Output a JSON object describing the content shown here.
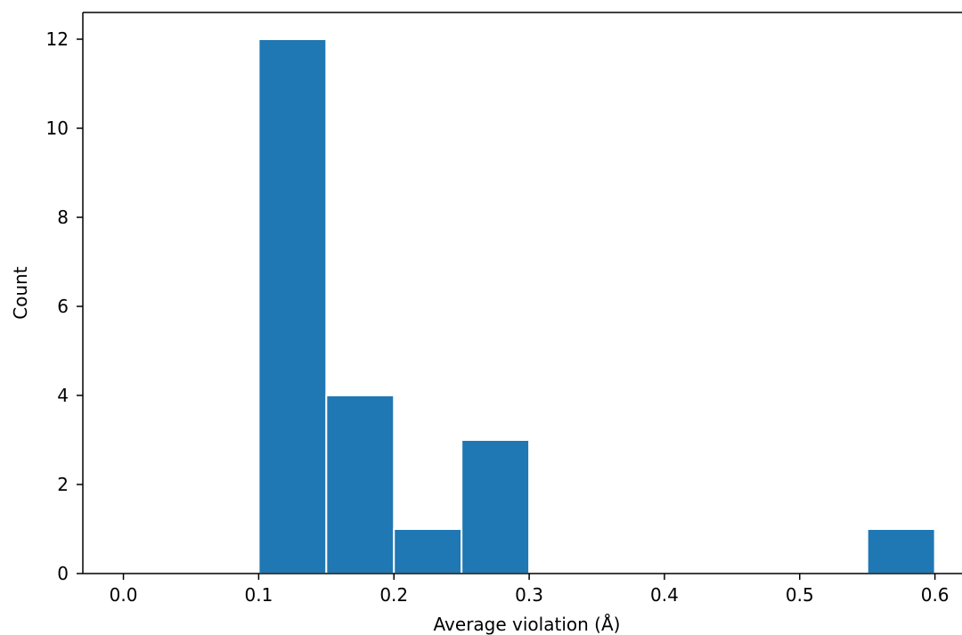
{
  "chart_data": {
    "type": "bar",
    "title": "",
    "xlabel": "Average violation (Å)",
    "ylabel": "Count",
    "xlim": [
      -0.03,
      0.62
    ],
    "ylim": [
      0,
      12.6
    ],
    "xticks": [
      0.0,
      0.1,
      0.2,
      0.3,
      0.4,
      0.5,
      0.6
    ],
    "xtick_labels": [
      "0.0",
      "0.1",
      "0.2",
      "0.3",
      "0.4",
      "0.5",
      "0.6"
    ],
    "yticks": [
      0,
      2,
      4,
      6,
      8,
      10,
      12
    ],
    "ytick_labels": [
      "0",
      "2",
      "4",
      "6",
      "8",
      "10",
      "12"
    ],
    "grid": false,
    "bar_color": "#1f77b4",
    "bins": [
      {
        "x0": 0.1,
        "x1": 0.15,
        "value": 12
      },
      {
        "x0": 0.15,
        "x1": 0.2,
        "value": 4
      },
      {
        "x0": 0.2,
        "x1": 0.25,
        "value": 1
      },
      {
        "x0": 0.25,
        "x1": 0.3,
        "value": 3
      },
      {
        "x0": 0.55,
        "x1": 0.6,
        "value": 1
      }
    ]
  }
}
